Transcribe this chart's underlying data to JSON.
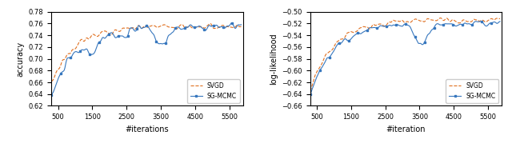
{
  "left": {
    "xlabel": "#iterations",
    "ylabel": "accuracy",
    "xlim": [
      300,
      5900
    ],
    "ylim": [
      0.62,
      0.78
    ],
    "yticks": [
      0.62,
      0.64,
      0.66,
      0.68,
      0.7,
      0.72,
      0.74,
      0.76,
      0.78
    ],
    "xticks": [
      500,
      1500,
      2500,
      3500,
      4500,
      5500
    ],
    "sg_mcmc_color": "#3777be",
    "svgd_color": "#e07020",
    "legend_labels": [
      "SG-MCMC",
      "SVGD"
    ]
  },
  "right": {
    "xlabel": "#iteration",
    "ylabel": "log-likelihood",
    "xlim": [
      300,
      5900
    ],
    "ylim": [
      -0.66,
      -0.5
    ],
    "yticks": [
      -0.66,
      -0.64,
      -0.62,
      -0.6,
      -0.58,
      -0.56,
      -0.54,
      -0.52,
      -0.5
    ],
    "xticks": [
      500,
      1500,
      2500,
      3500,
      4500,
      5500
    ],
    "sg_mcmc_color": "#3777be",
    "svgd_color": "#e07020",
    "legend_labels": [
      "SG-MCMC",
      "SVGD"
    ]
  },
  "fig_background": "#ffffff"
}
